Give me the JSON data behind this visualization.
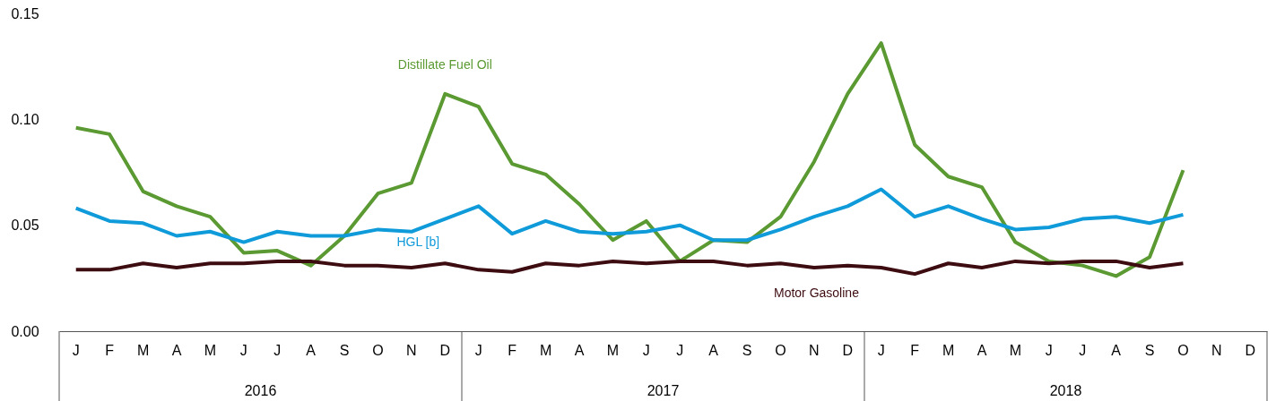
{
  "chart_data": {
    "type": "line",
    "categories": [
      "J",
      "F",
      "M",
      "A",
      "M",
      "J",
      "J",
      "A",
      "S",
      "O",
      "N",
      "D",
      "J",
      "F",
      "M",
      "A",
      "M",
      "J",
      "J",
      "A",
      "S",
      "O",
      "N",
      "D",
      "J",
      "F",
      "M",
      "A",
      "M",
      "J",
      "J",
      "A",
      "S",
      "O",
      "N",
      "D"
    ],
    "series": [
      {
        "name": "Distillate Fuel Oil",
        "color": "#5b9a32",
        "values": [
          0.096,
          0.093,
          0.066,
          0.059,
          0.054,
          0.037,
          0.038,
          0.031,
          0.045,
          0.065,
          0.07,
          0.112,
          0.106,
          0.079,
          0.074,
          0.06,
          0.043,
          0.052,
          0.033,
          0.043,
          0.042,
          0.054,
          0.08,
          0.112,
          0.136,
          0.088,
          0.073,
          0.068,
          0.042,
          0.033,
          0.031,
          0.026,
          0.035,
          0.076,
          null,
          null
        ]
      },
      {
        "name": "HGL [b]",
        "color": "#0f9ad9",
        "values": [
          0.058,
          0.052,
          0.051,
          0.045,
          0.047,
          0.042,
          0.047,
          0.045,
          0.045,
          0.048,
          0.047,
          0.053,
          0.059,
          0.046,
          0.052,
          0.047,
          0.046,
          0.047,
          0.05,
          0.043,
          0.043,
          0.048,
          0.054,
          0.059,
          0.067,
          0.054,
          0.059,
          0.053,
          0.048,
          0.049,
          0.053,
          0.054,
          0.051,
          0.055,
          null,
          null
        ]
      },
      {
        "name": "Motor Gasoline",
        "color": "#3d0c11",
        "values": [
          0.029,
          0.029,
          0.032,
          0.03,
          0.032,
          0.032,
          0.033,
          0.033,
          0.031,
          0.031,
          0.03,
          0.032,
          0.029,
          0.028,
          0.032,
          0.031,
          0.033,
          0.032,
          0.033,
          0.033,
          0.031,
          0.032,
          0.03,
          0.031,
          0.03,
          0.027,
          0.032,
          0.03,
          0.033,
          0.032,
          0.033,
          0.033,
          0.03,
          0.032,
          null,
          null
        ]
      }
    ],
    "ylim": [
      0,
      0.15
    ],
    "yticks": [
      {
        "value": 0,
        "label": "0.00"
      },
      {
        "value": 0.05,
        "label": "0.05"
      },
      {
        "value": 0.1,
        "label": "0.10"
      },
      {
        "value": 0.15,
        "label": "0.15"
      }
    ],
    "annotations": [
      "2016",
      "2017",
      "2018"
    ],
    "grid": false,
    "legend": false,
    "line_style": "solid",
    "marker": "none"
  }
}
